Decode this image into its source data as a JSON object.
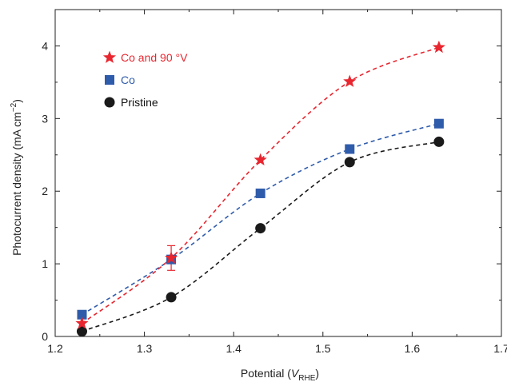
{
  "chart_data": {
    "type": "line",
    "title": "",
    "xlabel": {
      "main": "Potential (",
      "italic": "V",
      "sub": "RHE",
      "close": ")"
    },
    "ylabel": {
      "main": "Photocurrent density (mA cm",
      "sup": "−2",
      "close": ")"
    },
    "xlim": [
      1.2,
      1.7
    ],
    "ylim": [
      0,
      4.5
    ],
    "xticks": [
      1.2,
      1.3,
      1.4,
      1.5,
      1.6,
      1.7
    ],
    "xtick_labels": [
      "1.2",
      "1.3",
      "1.4",
      "1.5",
      "1.6",
      "1.7"
    ],
    "yticks": [
      0,
      1,
      2,
      3,
      4
    ],
    "ytick_labels": [
      "0",
      "1",
      "2",
      "3",
      "4"
    ],
    "grid": false,
    "legend_position": "top-left",
    "series": [
      {
        "name": "Co and 90 °V",
        "color": "#e8262f",
        "marker": "star",
        "x": [
          1.23,
          1.33,
          1.43,
          1.53,
          1.63
        ],
        "y": [
          0.18,
          1.08,
          2.43,
          3.51,
          3.98
        ],
        "error": [
          null,
          0.17,
          null,
          null,
          null
        ]
      },
      {
        "name": "Co",
        "color": "#2f5bab",
        "marker": "square",
        "x": [
          1.23,
          1.33,
          1.43,
          1.53,
          1.63
        ],
        "y": [
          0.3,
          1.06,
          1.97,
          2.58,
          2.93
        ],
        "error": [
          null,
          null,
          null,
          null,
          null
        ]
      },
      {
        "name": "Pristine",
        "color": "#1a1a1a",
        "marker": "circle",
        "x": [
          1.23,
          1.33,
          1.43,
          1.53,
          1.63
        ],
        "y": [
          0.07,
          0.54,
          1.49,
          2.4,
          2.68
        ],
        "error": [
          null,
          null,
          null,
          null,
          null
        ]
      }
    ]
  }
}
